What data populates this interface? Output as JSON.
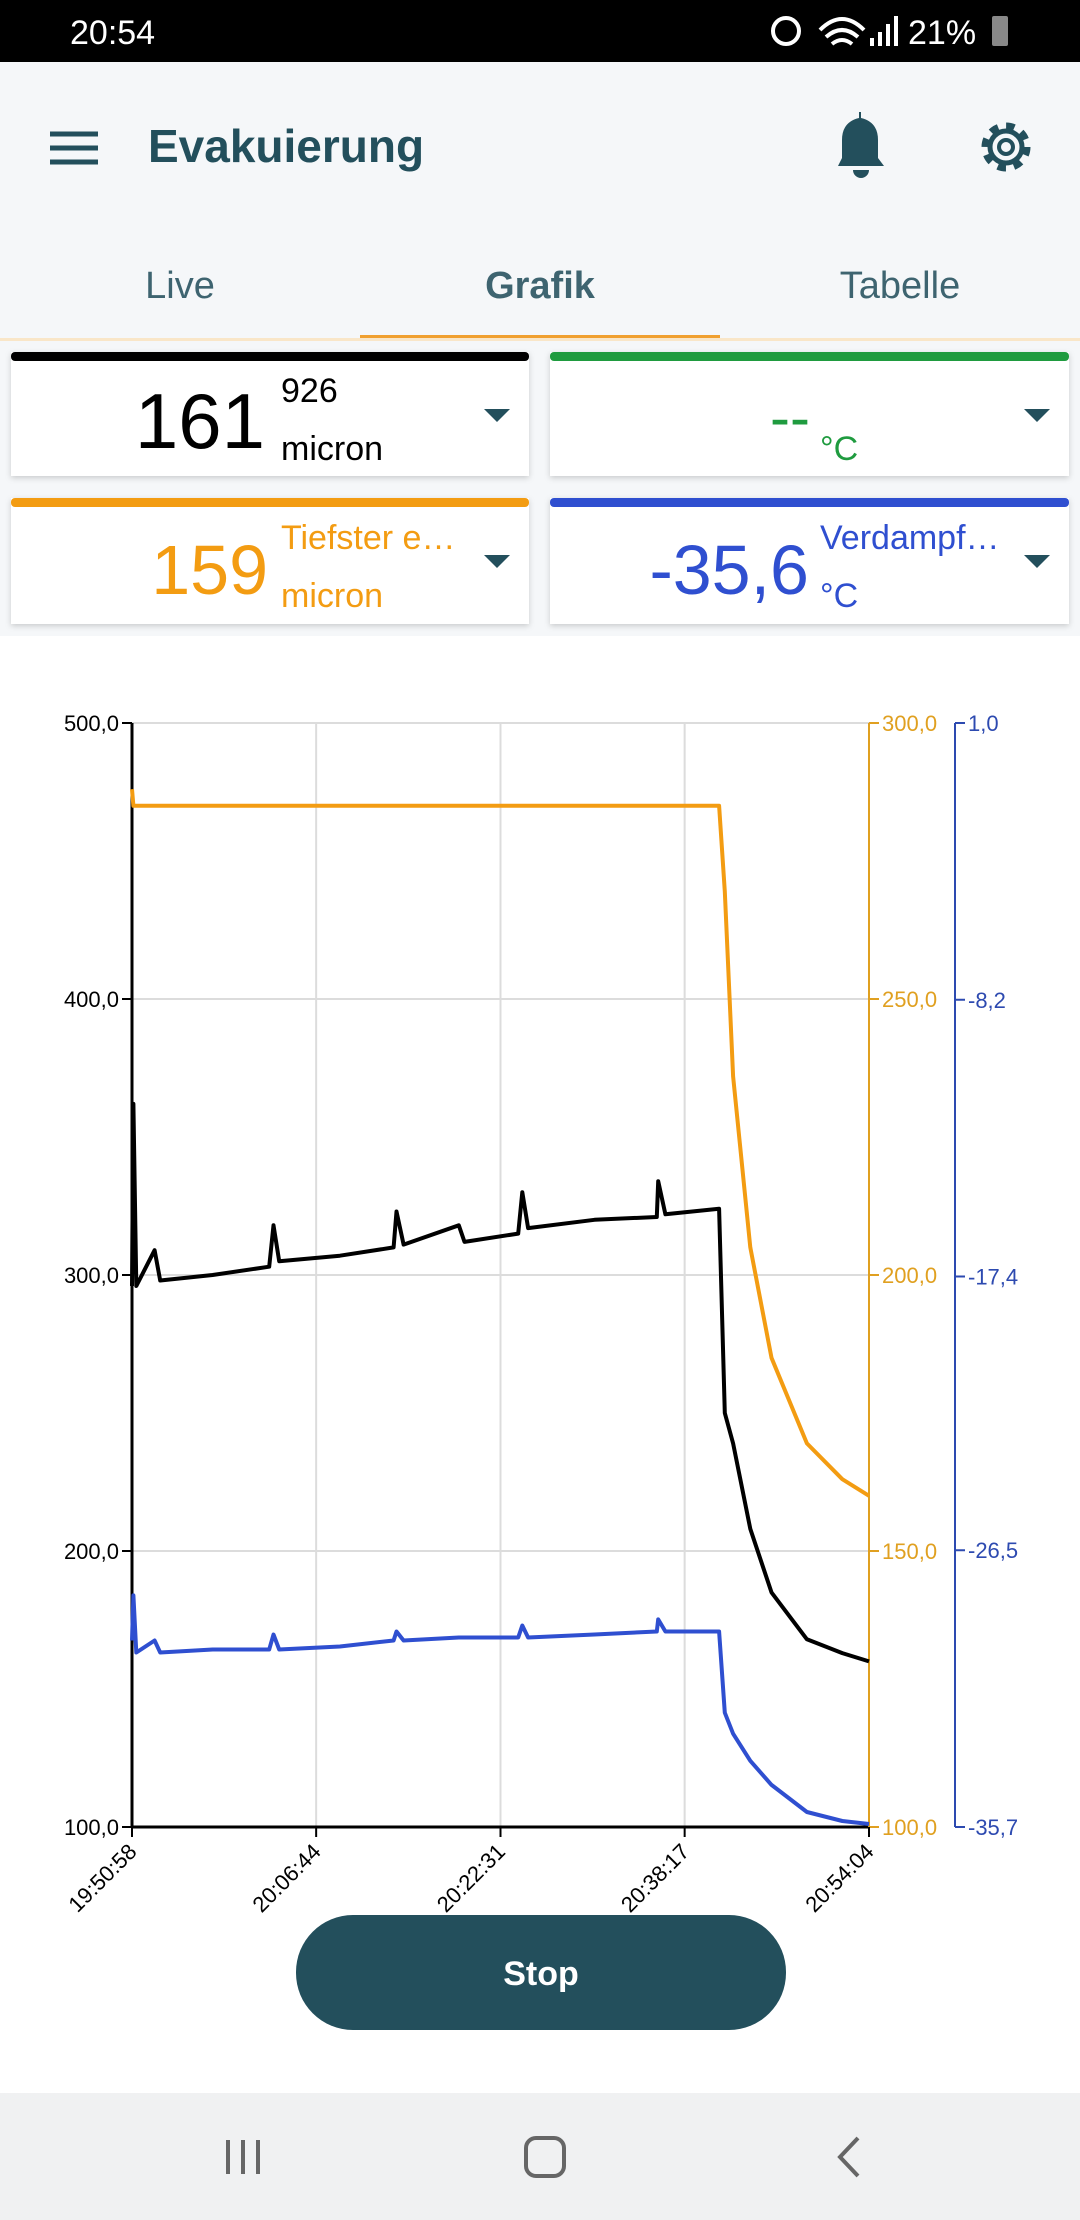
{
  "status_bar": {
    "time": "20:54",
    "battery": "21%"
  },
  "header": {
    "title": "Evakuierung"
  },
  "tabs": [
    "Live",
    "Grafik",
    "Tabelle"
  ],
  "cards": [
    {
      "value": "161",
      "sub": "926",
      "unit": "micron"
    },
    {
      "value": "--",
      "unit": "°C"
    },
    {
      "value": "159",
      "label": "Tiefster e…",
      "unit": "micron"
    },
    {
      "value": "-35,6",
      "label": "Verdampf…",
      "unit": "°C"
    }
  ],
  "chart_data": {
    "type": "line",
    "x": [
      "19:50:58",
      "19:51:05",
      "19:51:20",
      "19:52:54",
      "19:53:23",
      "19:57:52",
      "20:02:43",
      "20:03:05",
      "20:03:34",
      "20:08:46",
      "20:13:22",
      "20:13:37",
      "20:14:13",
      "20:18:57",
      "20:19:26",
      "20:24:02",
      "20:24:23",
      "20:24:53",
      "20:30:34",
      "20:35:54",
      "20:36:01",
      "20:36:38",
      "20:41:14",
      "20:41:43",
      "20:42:26",
      "20:43:54",
      "20:45:43",
      "20:48:45",
      "20:51:47",
      "20:54:04"
    ],
    "xlim": [
      "19:50:58",
      "20:54:04"
    ],
    "xticks": [
      "19:50:58",
      "20:06:44",
      "20:22:31",
      "20:38:17",
      "20:54:04"
    ],
    "ylim": [
      100,
      500
    ],
    "yticks": [
      {
        "value": 100,
        "label": "100,0"
      },
      {
        "value": 200,
        "label": "200,0"
      },
      {
        "value": 300,
        "label": "300,0"
      },
      {
        "value": 400,
        "label": "400,0"
      },
      {
        "value": 500,
        "label": "500,0"
      }
    ],
    "y2lim": [
      100,
      300
    ],
    "y2ticks": [
      {
        "value": 100,
        "label": "100,0"
      },
      {
        "value": 150,
        "label": "150,0"
      },
      {
        "value": 200,
        "label": "200,0"
      },
      {
        "value": 250,
        "label": "250,0"
      },
      {
        "value": 300,
        "label": "300,0"
      }
    ],
    "y3lim": [
      -35.7,
      1.0
    ],
    "y3ticks": [
      {
        "value": -35.7,
        "label": "-35,7"
      },
      {
        "value": -26.5,
        "label": "-26,5"
      },
      {
        "value": -17.4,
        "label": "-17,4"
      },
      {
        "value": -8.2,
        "label": "-8,2"
      },
      {
        "value": 1.0,
        "label": "1,0"
      }
    ],
    "grid": true,
    "series": [
      {
        "color": "#000000",
        "axis": "y",
        "values": [
          296,
          362,
          296,
          309,
          298,
          300,
          303,
          318,
          305,
          307,
          310,
          323,
          311,
          318,
          312,
          315,
          330,
          317,
          320,
          321,
          334,
          322,
          324,
          250,
          239,
          208,
          185,
          168,
          163,
          160
        ]
      },
      {
        "color": "#f39c12",
        "axis": "y2",
        "values": [
          288,
          285,
          285,
          285,
          285,
          285,
          285,
          285,
          285,
          285,
          285,
          285,
          285,
          285,
          285,
          285,
          285,
          285,
          285,
          285,
          285,
          285,
          285,
          269.5,
          236,
          205,
          185,
          169.5,
          163,
          160
        ]
      },
      {
        "color": "#2f4fd0",
        "axis": "y3",
        "values": [
          -29.5,
          -28.0,
          -29.9,
          -29.5,
          -29.9,
          -29.8,
          -29.8,
          -29.3,
          -29.8,
          -29.7,
          -29.5,
          -29.2,
          -29.5,
          -29.4,
          -29.4,
          -29.4,
          -29.0,
          -29.4,
          -29.3,
          -29.2,
          -28.8,
          -29.2,
          -29.2,
          -31.9,
          -32.6,
          -33.5,
          -34.3,
          -35.2,
          -35.5,
          -35.6
        ]
      }
    ]
  },
  "button": "Stop"
}
